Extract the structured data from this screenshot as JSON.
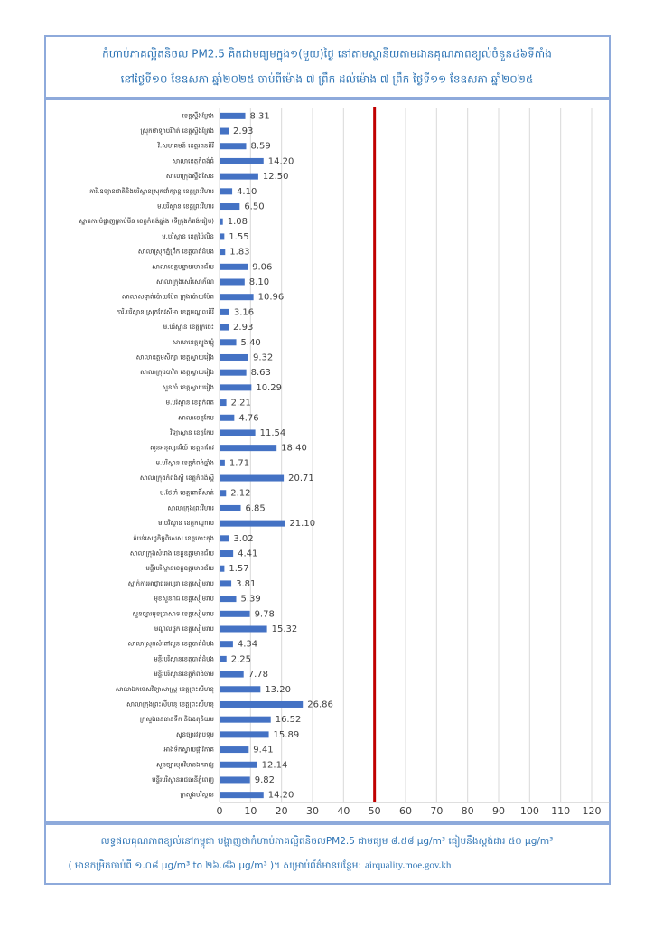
{
  "chart_data": {
    "type": "bar",
    "orientation": "horizontal",
    "title": [
      "កំហាប់ភាគល្អិតនិចល PM2.5 គិតជាមធ្យមក្នុង១(មួយ)ថ្ងៃ នៅតាមស្ថានីយតាមដានគុណភាពខ្យល់ចំនួន៤៦ទីតាំង",
      "នៅថ្ងៃទី១០ ខែឧសភា ឆ្នាំ២០២៥ ចាប់ពីម៉ោង ៧ ព្រឹក ដល់ម៉ោង ៧ ព្រឹក ថ្ងៃទី១១ ខែឧសភា ឆ្នាំ២០២៥"
    ],
    "categories": [
      "ខេត្តស្ទឹងត្រែង",
      "ស្រុកថាឡាបរិវ៉ាត់ ខេត្តស្ទឹងត្រែង",
      "វិ.សហគមន៍ ខេត្តរតនគិរី",
      "សាលាខេត្តកំពង់ធំ",
      "សាលាក្រុងស្ទឹងសែន",
      "ការិ.ឧទ្យានជាតិនិងបរិស្ថានស្រុកជាំក្សាន្ត ខេត្តព្រះវិហារ",
      "ម.បរិស្ថាន ខេត្តព្រះវិហារ",
      "ស្នាក់ការបំផ្លាញគ្រាប់មីន ខេត្តកំពង់ឆ្នាំង (ទីក្រុងកំពង់ធៀប)",
      "ម.បរិស្ថាន ខេត្តប៉ៃលិន",
      "សាលាស្រុកភ្នំព្រឹក ខេត្តបាត់ដំបង",
      "សាលាខេត្តបន្ទាយមានជ័យ",
      "សាលាក្រុងសេរីសោភ័ណ",
      "សាលាសង្កាត់ប៉ោយប៉ែត ក្រុងប៉ោយប៉ែត",
      "ការិ.បរិស្ថាន ស្រុកកែវសីមា ខេត្តមណ្ឌលគិរី",
      "ម.បរិស្ថាន ខេត្តក្រចេះ",
      "សាលាខេត្តត្បូងឃ្មុំ",
      "សាលាឧត្តមសិក្សា ខេត្តស្វាយរៀង",
      "សាលាក្រុងបាវិត ខេត្តស្វាយរៀង",
      "សួនកាំ ខេត្តស្វាយរៀង",
      "ម.បរិស្ថាន ខេត្តកំពត",
      "សាលាខេត្តកែប",
      "វិទ្យាស្ថាន ខេត្តកែប",
      "សួនអនុស្សាវរីយ៍ ខេត្តតាកែវ",
      "ម.បរិស្ថាន ខេត្តកំពង់ឆ្នាំង",
      "សាលាក្រុងកំពង់ស្ពឺ ខេត្តកំពង់ស្ពឺ",
      "ម.ថែទាំ ខេត្តពោធិ៍សាត់",
      "សាលាក្រុងព្រះវិហារ",
      "ម.បរិស្ថាន ខេត្តកណ្ដាល",
      "តំបន់សេដ្ឋកិច្ចពិសេស ខេត្តកោះកុង",
      "សាលាក្រុងសំរោង ខេត្តឧត្តរមានជ័យ",
      "មន្ទីរបរិស្ថានខេត្តឧត្តរមានជ័យ",
      "ស្នាក់ការអាជ្ញាធរអប្សរា ខេត្តសៀមរាប",
      "មុខសួនរាជ ខេត្តសៀមរាប",
      "សួនច្បារមុខប្រាសាទ ខេត្តសៀមរាប",
      "មណ្ឌលផ្ទុក ខេត្តសៀមរាប",
      "សាលាស្រុកសំពៅលូន ខេត្តបាត់ដំបង",
      "មន្ទីរបរិស្ថានខេត្តបាត់ដំបង",
      "មន្ទីរបរិស្ថានខេត្តកំពង់ចាម",
      "សាលាឯកទេសវិទ្យាសាស្ត្រ ខេត្តព្រះសីហនុ",
      "សាលាក្រុងព្រះសីហនុ ខេត្តព្រះសីហនុ",
      "ក្រសួងធនធានទឹក និងឧតុនិយម",
      "សួនច្បារវត្តបទុម",
      "អាងទឹកស្វាយផ្កាវិភាគ",
      "សួនច្បារមុខវិមានឯករាជ្យ",
      "មន្ទីរបរិស្ថានរាជធានីភ្នំពេញ",
      "ក្រសួងបរិស្ថាន"
    ],
    "values": [
      8.31,
      2.93,
      8.59,
      14.2,
      12.5,
      4.1,
      6.5,
      1.08,
      1.55,
      1.83,
      9.06,
      8.1,
      10.96,
      3.16,
      2.93,
      5.4,
      9.32,
      8.63,
      10.29,
      2.21,
      4.76,
      11.54,
      18.4,
      1.71,
      20.71,
      2.12,
      6.85,
      21.1,
      3.02,
      4.41,
      1.57,
      3.81,
      5.39,
      9.78,
      15.32,
      4.34,
      2.25,
      7.78,
      13.2,
      26.86,
      16.52,
      15.89,
      9.41,
      12.14,
      9.82,
      14.2
    ],
    "value_labels": [
      "8.31",
      "2.93",
      "8.59",
      "14.20",
      "12.50",
      "4.10",
      "6.50",
      "1.08",
      "1.55",
      "1.83",
      "9.06",
      "8.10",
      "10.96",
      "3.16",
      "2.93",
      "5.40",
      "9.32",
      "8.63",
      "10.29",
      "2.21",
      "4.76",
      "11.54",
      "18.40",
      "1.71",
      "20.71",
      "2.12",
      "6.85",
      "21.10",
      "3.02",
      "4.41",
      "1.57",
      "3.81",
      "5.39",
      "9.78",
      "15.32",
      "4.34",
      "2.25",
      "7.78",
      "13.20",
      "26.86",
      "16.52",
      "15.89",
      "9.41",
      "12.14",
      "9.82",
      "14.20"
    ],
    "color": "#4472c4",
    "threshold": 50,
    "threshold_color": "#c00000",
    "xlim": [
      0,
      120
    ],
    "xticks": [
      0,
      10,
      20,
      30,
      40,
      50,
      60,
      70,
      80,
      90,
      100,
      110,
      120
    ],
    "grid": true,
    "footer": [
      "លទ្ធផលគុណភាពខ្យល់នៅកម្ពុជា បង្ហាញថាកំហាប់ភាគល្អិតនិចលPM2.5 ជាមធ្យម ៨.៥៨ µg/m³ ធៀបនឹងស្តង់ដារ ៥០ µg/m³",
      "( មានកម្រិតចាប់ពី ១.០៨ µg/m³ to ២៦.៨៦ µg/m³ )។ សម្រាប់ព័ត៌មានបន្ថែម:",
      "airquality.moe.gov.kh"
    ]
  }
}
